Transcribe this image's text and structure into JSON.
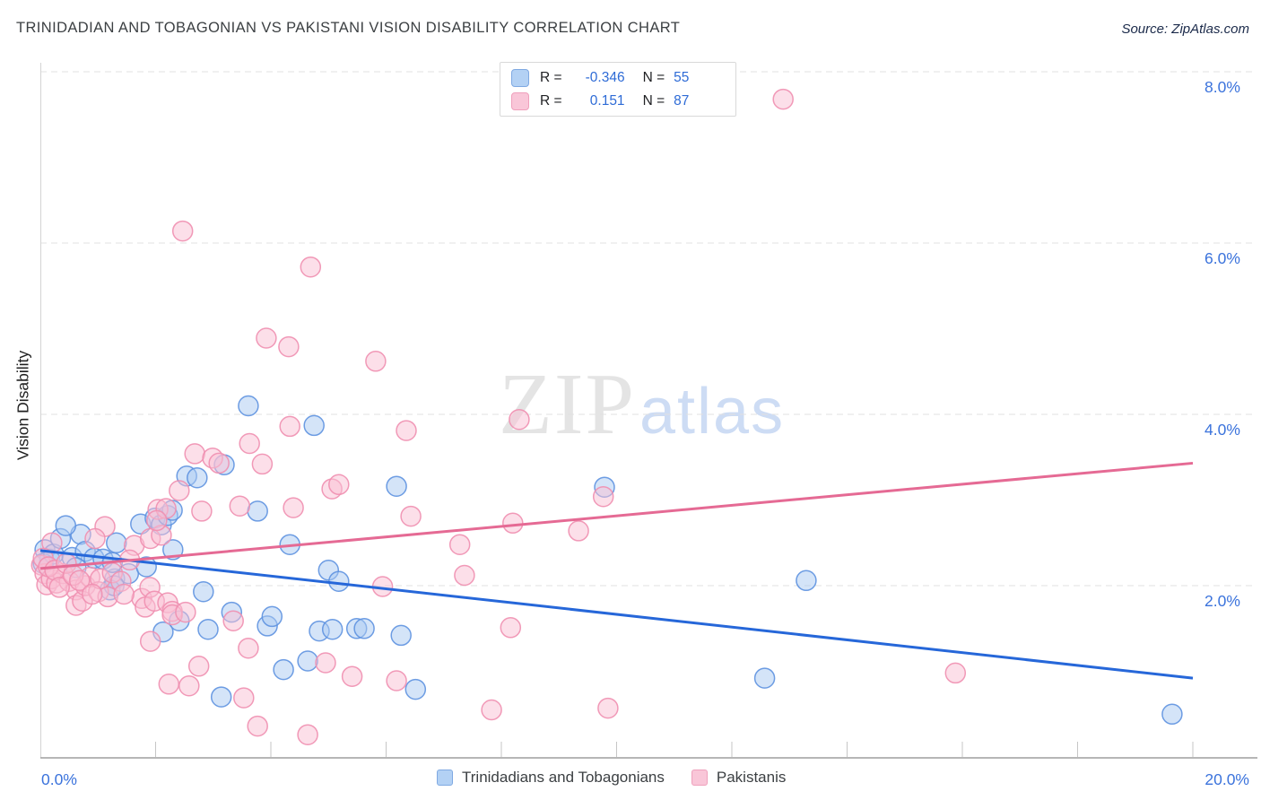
{
  "header": {
    "title": "TRINIDADIAN AND TOBAGONIAN VS PAKISTANI VISION DISABILITY CORRELATION CHART",
    "source": "Source: ZipAtlas.com"
  },
  "watermark": {
    "zip": "ZIP",
    "atlas": "atlas"
  },
  "legend_box": {
    "rows": [
      {
        "series": "Trinidadians and Tobagonians",
        "r_label": "R =",
        "r_value": "-0.346",
        "n_label": "N =",
        "n_value": "55"
      },
      {
        "series": "Pakistanis",
        "r_label": "R =",
        "r_value": "0.151",
        "n_label": "N =",
        "n_value": "87"
      }
    ]
  },
  "bottom_legend": {
    "items": [
      {
        "label": "Trinidadians and Tobagonians",
        "color": "#b3d1f4",
        "border": "#7fa9e2"
      },
      {
        "label": "Pakistanis",
        "color": "#f9c6d8",
        "border": "#efa0bc"
      }
    ]
  },
  "axes": {
    "y_label": "Vision Disability",
    "x_min_label": "0.0%",
    "x_max_label": "20.0%",
    "y_tick_labels": [
      "8.0%",
      "6.0%",
      "4.0%",
      "2.0%"
    ],
    "y_tick_values": [
      8,
      6,
      4,
      2
    ],
    "x_tick_values": [
      2,
      4,
      6,
      8,
      10,
      12,
      14,
      16,
      18,
      20
    ]
  },
  "colors": {
    "accent_text": "#3b73dc",
    "blue_point_fill": "#a9c9f2",
    "blue_point_stroke": "#5e92e0",
    "pink_point_fill": "#f9c0d4",
    "pink_point_stroke": "#ef8fb0",
    "blue_line": "#2667d9",
    "pink_line": "#e56a94",
    "gridline": "#e1e1e1",
    "x_axis": "#9e9e9e",
    "y_axis": "#d4d4d4",
    "tick": "#c6c6c6"
  },
  "chart_data": {
    "type": "scatter",
    "xlabel": "",
    "ylabel": "Vision Disability",
    "x_unit": "%",
    "y_unit": "%",
    "xlim": [
      0,
      20
    ],
    "ylim": [
      0,
      8.1
    ],
    "grid": "horizontal-dashed",
    "legend_position": "top-center",
    "series": [
      {
        "name": "Trinidadians and Tobagonians",
        "r": -0.346,
        "n": 55,
        "trend": {
          "x": [
            0,
            20
          ],
          "y": [
            2.41,
            0.92
          ]
        },
        "points": [
          [
            0.08,
            2.42
          ],
          [
            0.16,
            2.31
          ],
          [
            0.05,
            2.26
          ],
          [
            0.23,
            2.37
          ],
          [
            0.35,
            2.55
          ],
          [
            0.55,
            2.33
          ],
          [
            0.7,
            2.6
          ],
          [
            0.44,
            2.7
          ],
          [
            0.78,
            2.4
          ],
          [
            0.93,
            2.32
          ],
          [
            1.09,
            2.31
          ],
          [
            1.32,
            2.5
          ],
          [
            0.62,
            2.21
          ],
          [
            1.29,
            2.08
          ],
          [
            1.53,
            2.14
          ],
          [
            1.74,
            2.72
          ],
          [
            1.84,
            2.22
          ],
          [
            1.99,
            2.79
          ],
          [
            2.1,
            2.71
          ],
          [
            2.21,
            2.82
          ],
          [
            2.3,
            2.42
          ],
          [
            1.21,
            1.95
          ],
          [
            2.29,
            2.88
          ],
          [
            3.19,
            3.41
          ],
          [
            2.54,
            3.28
          ],
          [
            2.72,
            3.26
          ],
          [
            3.61,
            4.1
          ],
          [
            3.77,
            2.87
          ],
          [
            4.33,
            2.48
          ],
          [
            4.75,
            3.87
          ],
          [
            5.0,
            2.18
          ],
          [
            5.18,
            2.05
          ],
          [
            4.64,
            1.12
          ],
          [
            4.84,
            1.47
          ],
          [
            5.07,
            1.49
          ],
          [
            5.49,
            1.5
          ],
          [
            5.62,
            1.5
          ],
          [
            6.26,
            1.42
          ],
          [
            6.51,
            0.79
          ],
          [
            6.18,
            3.16
          ],
          [
            2.13,
            1.46
          ],
          [
            2.41,
            1.59
          ],
          [
            2.91,
            1.49
          ],
          [
            3.32,
            1.69
          ],
          [
            3.94,
            1.53
          ],
          [
            4.02,
            1.64
          ],
          [
            4.22,
            1.02
          ],
          [
            3.14,
            0.7
          ],
          [
            9.79,
            3.15
          ],
          [
            13.29,
            2.06
          ],
          [
            12.57,
            0.92
          ],
          [
            19.64,
            0.5
          ],
          [
            2.83,
            1.93
          ],
          [
            1.25,
            2.27
          ],
          [
            1.28,
            2.0
          ]
        ]
      },
      {
        "name": "Pakistanis",
        "r": 0.151,
        "n": 87,
        "trend": {
          "x": [
            0,
            20
          ],
          "y": [
            2.2,
            3.43
          ]
        },
        "points": [
          [
            0.02,
            2.24
          ],
          [
            0.08,
            2.14
          ],
          [
            0.11,
            2.01
          ],
          [
            0.19,
            2.08
          ],
          [
            0.28,
            2.03
          ],
          [
            0.2,
            2.5
          ],
          [
            0.39,
            2.14
          ],
          [
            0.5,
            2.05
          ],
          [
            0.62,
            1.95
          ],
          [
            0.62,
            1.77
          ],
          [
            0.73,
            1.82
          ],
          [
            0.78,
            2.0
          ],
          [
            0.86,
            2.1
          ],
          [
            1.01,
            1.93
          ],
          [
            1.04,
            2.08
          ],
          [
            1.12,
            2.69
          ],
          [
            1.17,
            1.87
          ],
          [
            1.63,
            2.47
          ],
          [
            1.76,
            1.85
          ],
          [
            1.82,
            1.75
          ],
          [
            1.9,
            1.98
          ],
          [
            1.91,
            2.55
          ],
          [
            1.98,
            1.82
          ],
          [
            2.1,
            2.59
          ],
          [
            2.21,
            1.8
          ],
          [
            2.29,
            1.7
          ],
          [
            2.04,
            2.89
          ],
          [
            2.18,
            2.9
          ],
          [
            2.41,
            3.11
          ],
          [
            2.68,
            3.54
          ],
          [
            2.8,
            2.87
          ],
          [
            2.99,
            3.49
          ],
          [
            3.1,
            3.43
          ],
          [
            3.85,
            3.42
          ],
          [
            3.46,
            2.93
          ],
          [
            3.63,
            3.66
          ],
          [
            4.33,
            3.86
          ],
          [
            4.39,
            2.91
          ],
          [
            2.47,
            6.14
          ],
          [
            4.69,
            5.72
          ],
          [
            3.92,
            4.89
          ],
          [
            4.31,
            4.79
          ],
          [
            5.82,
            4.62
          ],
          [
            6.35,
            3.81
          ],
          [
            5.06,
            3.13
          ],
          [
            5.18,
            3.18
          ],
          [
            8.31,
            3.94
          ],
          [
            8.2,
            2.73
          ],
          [
            9.77,
            3.04
          ],
          [
            9.34,
            2.64
          ],
          [
            7.28,
            2.48
          ],
          [
            7.36,
            2.12
          ],
          [
            6.43,
            2.81
          ],
          [
            5.94,
            1.99
          ],
          [
            8.16,
            1.51
          ],
          [
            4.95,
            1.1
          ],
          [
            5.41,
            0.94
          ],
          [
            6.18,
            0.89
          ],
          [
            7.83,
            0.55
          ],
          [
            9.85,
            0.57
          ],
          [
            4.64,
            0.26
          ],
          [
            3.77,
            0.36
          ],
          [
            3.53,
            0.69
          ],
          [
            2.23,
            0.85
          ],
          [
            2.58,
            0.83
          ],
          [
            2.75,
            1.06
          ],
          [
            1.91,
            1.35
          ],
          [
            2.29,
            1.66
          ],
          [
            2.52,
            1.69
          ],
          [
            3.35,
            1.59
          ],
          [
            3.61,
            1.27
          ],
          [
            15.88,
            0.98
          ],
          [
            12.89,
            7.68
          ],
          [
            2.02,
            2.76
          ],
          [
            0.05,
            2.32
          ],
          [
            0.14,
            2.22
          ],
          [
            0.25,
            2.18
          ],
          [
            0.33,
            1.98
          ],
          [
            0.45,
            2.26
          ],
          [
            0.57,
            2.12
          ],
          [
            0.68,
            2.06
          ],
          [
            0.9,
            1.9
          ],
          [
            1.25,
            2.15
          ],
          [
            1.4,
            2.05
          ],
          [
            1.55,
            2.3
          ],
          [
            0.95,
            2.55
          ],
          [
            1.45,
            1.9
          ]
        ]
      }
    ]
  }
}
